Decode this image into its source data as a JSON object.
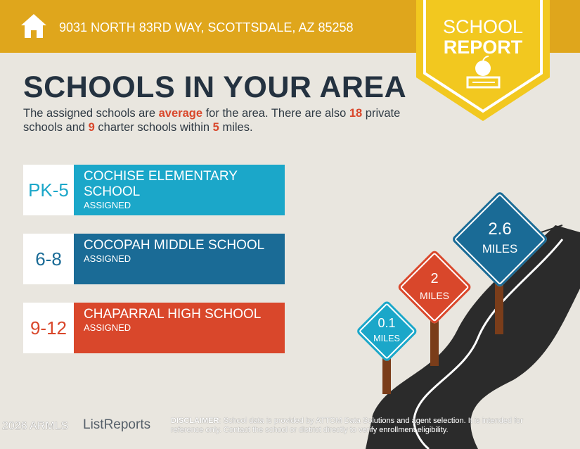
{
  "header": {
    "address": "9031 NORTH 83RD WAY, SCOTTSDALE, AZ 85258",
    "badge_line1": "SCHOOL",
    "badge_line2": "REPORT"
  },
  "title": "SCHOOLS IN YOUR AREA",
  "intro": {
    "p1": "The assigned schools are ",
    "rating": "average",
    "p2": " for the area. There are also ",
    "private_count": "18",
    "p3": " private schools and ",
    "charter_count": "9",
    "p4": " charter schools within ",
    "miles": "5",
    "p5": " miles."
  },
  "schools": [
    {
      "grades": "PK-5",
      "name": "COCHISE ELEMENTARY SCHOOL",
      "status": "ASSIGNED",
      "color": "#1ba7c9"
    },
    {
      "grades": "6-8",
      "name": "COCOPAH MIDDLE SCHOOL",
      "status": "ASSIGNED",
      "color": "#1a6b96"
    },
    {
      "grades": "9-12",
      "name": "CHAPARRAL HIGH SCHOOL",
      "status": "ASSIGNED",
      "color": "#d9472b"
    }
  ],
  "signs": [
    {
      "value": "0.1",
      "unit": "MILES",
      "color": "#1ba7c9"
    },
    {
      "value": "2",
      "unit": "MILES",
      "color": "#d9472b"
    },
    {
      "value": "2.6",
      "unit": "MILES",
      "color": "#1a6b96"
    }
  ],
  "footer": {
    "logo": "ListReports",
    "watermark": "2026 ARMLS",
    "disclaimer_label": "DISCLAIMER",
    "disclaimer": ": School data is provided by ATTOM Data Solutions and agent selection. It is intended for reference only. Contact the school or district directly to verify enrollment eligibility."
  }
}
